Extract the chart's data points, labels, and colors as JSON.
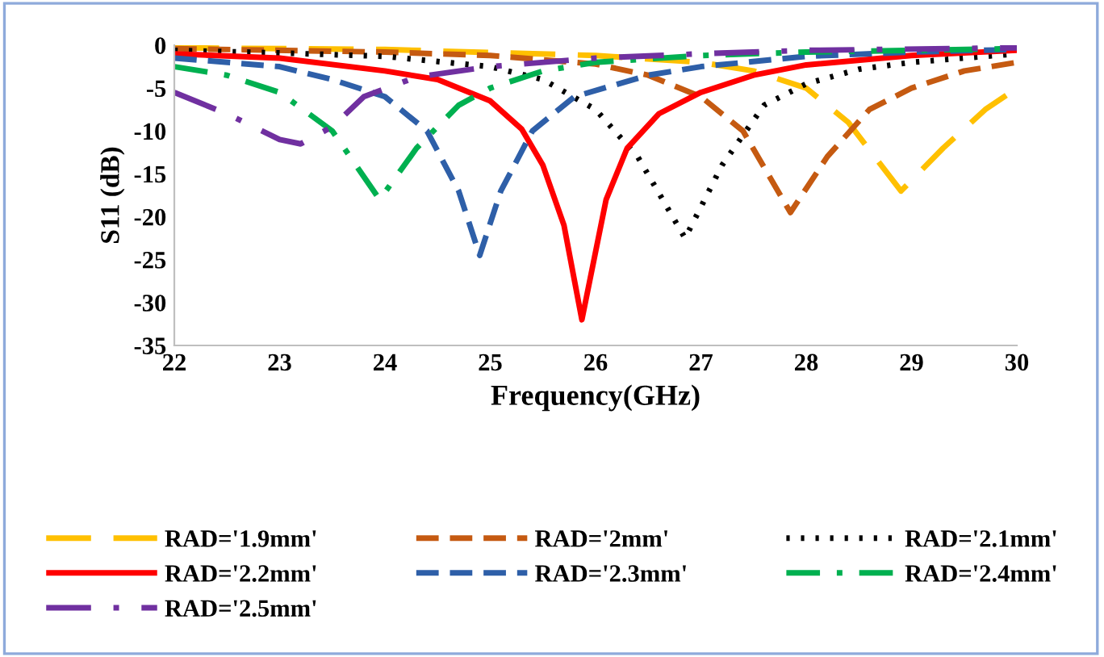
{
  "chart_data": {
    "type": "line",
    "xlabel": "Frequency(GHz)",
    "ylabel": "S11 (dB)",
    "xlim": [
      22,
      30
    ],
    "xticks": [
      22,
      23,
      24,
      25,
      26,
      27,
      28,
      29,
      30
    ],
    "ylim": [
      -35,
      0
    ],
    "yticks": [
      -35,
      -30,
      -25,
      -20,
      -15,
      -10,
      -5,
      0
    ],
    "grid": false,
    "legend": "bottom",
    "marker": "none",
    "series": [
      {
        "name": "RAD='1.9mm'",
        "color": "#ffc000",
        "line_style": "longdash",
        "x": [
          22,
          24,
          26,
          27,
          27.5,
          28,
          28.4,
          28.9,
          29.3,
          29.7,
          30
        ],
        "values": [
          -0.3,
          -0.5,
          -1.2,
          -2,
          -3,
          -5,
          -9,
          -17,
          -12,
          -7.5,
          -5
        ]
      },
      {
        "name": "RAD='2mm'",
        "color": "#c55a11",
        "line_style": "dashed",
        "x": [
          22,
          24,
          25,
          26,
          26.5,
          27,
          27.4,
          27.85,
          28.2,
          28.6,
          29,
          29.5,
          30
        ],
        "values": [
          -0.4,
          -0.8,
          -1.2,
          -2.2,
          -3.5,
          -6,
          -10,
          -19.5,
          -13,
          -7.5,
          -5,
          -3,
          -2
        ]
      },
      {
        "name": "RAD='2.1mm'",
        "color": "#000000",
        "line_style": "dotted",
        "x": [
          22,
          23,
          24,
          25,
          25.5,
          26,
          26.4,
          26.85,
          27.2,
          27.6,
          28,
          28.5,
          29,
          30
        ],
        "values": [
          -0.6,
          -0.9,
          -1.3,
          -2.5,
          -4,
          -7.5,
          -13,
          -22.5,
          -14,
          -7,
          -4.5,
          -2.8,
          -2,
          -1
        ]
      },
      {
        "name": "RAD='2.2mm'",
        "color": "#ff0000",
        "line_style": "solid",
        "x": [
          22,
          23,
          24,
          24.5,
          25,
          25.3,
          25.5,
          25.7,
          25.87,
          26.1,
          26.3,
          26.6,
          27,
          27.5,
          28,
          29,
          30
        ],
        "values": [
          -1,
          -1.5,
          -3,
          -4,
          -6.5,
          -9.8,
          -14,
          -21,
          -32,
          -18,
          -12,
          -8,
          -5.5,
          -3.5,
          -2.3,
          -1.2,
          -0.6
        ]
      },
      {
        "name": "RAD='2.3mm'",
        "color": "#2e5fa8",
        "line_style": "dashed",
        "x": [
          22,
          23,
          23.5,
          24,
          24.4,
          24.7,
          24.9,
          25.1,
          25.4,
          25.8,
          26.5,
          27,
          28,
          29,
          30
        ],
        "values": [
          -1.5,
          -2.5,
          -4,
          -6,
          -10,
          -17,
          -24.5,
          -17,
          -10,
          -6,
          -3.5,
          -2.5,
          -1.3,
          -0.8,
          -0.5
        ]
      },
      {
        "name": "RAD='2.4mm'",
        "color": "#00b050",
        "line_style": "dashdot",
        "x": [
          22,
          22.5,
          23,
          23.5,
          23.95,
          24.3,
          24.7,
          25,
          25.5,
          26,
          27,
          28,
          30
        ],
        "values": [
          -2.5,
          -3.5,
          -5.5,
          -10,
          -18,
          -12,
          -7,
          -5,
          -3,
          -2,
          -1.2,
          -0.8,
          -0.4
        ]
      },
      {
        "name": "RAD='2.5mm'",
        "color": "#7030a0",
        "line_style": "longdashdot",
        "x": [
          22,
          22.5,
          23,
          23.2,
          23.5,
          23.8,
          24.3,
          25,
          26,
          27,
          28,
          30
        ],
        "values": [
          -5.5,
          -8,
          -11,
          -11.5,
          -9.5,
          -6,
          -3.7,
          -2.5,
          -1.5,
          -1,
          -0.6,
          -0.3
        ]
      }
    ]
  }
}
